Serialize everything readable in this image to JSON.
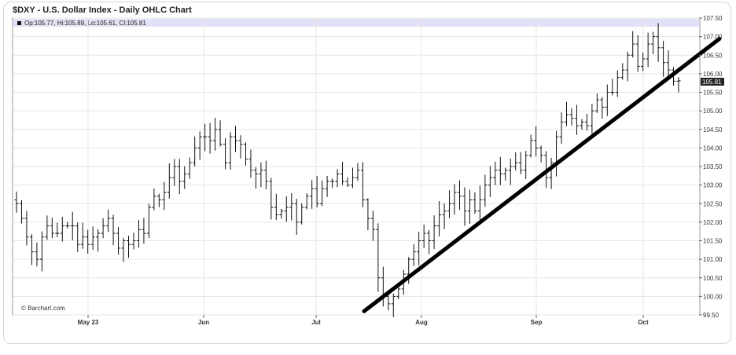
{
  "chart_data": {
    "type": "ohlc",
    "title": "$DXY - U.S. Dollar Index - Daily OHLC Chart",
    "legend": "Op:105.77, Hi:105.89, Lo:105.61, Cl:105.81",
    "credit": "© Barchart.com",
    "last_price_label": "105.81",
    "ylim": [
      99.5,
      107.5
    ],
    "y_ticks": [
      "107.50",
      "107.00",
      "106.50",
      "106.00",
      "105.50",
      "105.00",
      "104.50",
      "104.00",
      "103.50",
      "103.00",
      "102.50",
      "102.00",
      "101.50",
      "101.00",
      "100.50",
      "100.00",
      "99.50"
    ],
    "x_ticks": [
      "May 23",
      "Jun",
      "Jul",
      "Aug",
      "Sep",
      "Oct"
    ],
    "closes": [
      102.5,
      102.1,
      101.6,
      101.2,
      101.0,
      101.6,
      101.9,
      101.7,
      101.7,
      101.9,
      101.9,
      101.9,
      101.4,
      101.6,
      101.4,
      101.6,
      101.7,
      101.9,
      102.1,
      101.7,
      101.3,
      101.5,
      101.4,
      101.5,
      101.8,
      101.7,
      102.4,
      102.7,
      102.6,
      102.8,
      103.2,
      103.5,
      103.1,
      103.3,
      103.6,
      104.0,
      104.3,
      104.3,
      104.2,
      104.5,
      104.1,
      103.6,
      104.3,
      104.2,
      104.1,
      103.7,
      103.4,
      103.3,
      103.4,
      103.1,
      102.4,
      102.2,
      102.3,
      102.4,
      102.5,
      102.0,
      102.4,
      102.7,
      102.9,
      102.5,
      102.9,
      103.1,
      103.1,
      103.3,
      103.1,
      103.0,
      103.2,
      103.4,
      102.6,
      102.1,
      101.8,
      100.5,
      100.0,
      99.8,
      100.0,
      100.2,
      100.6,
      101.0,
      101.2,
      101.5,
      101.7,
      101.5,
      101.9,
      102.2,
      102.3,
      102.5,
      102.8,
      102.7,
      102.3,
      102.6,
      102.3,
      102.6,
      103.0,
      103.2,
      103.4,
      103.3,
      103.4,
      103.5,
      103.6,
      103.4,
      103.8,
      104.2,
      104.0,
      103.8,
      103.2,
      103.6,
      104.3,
      104.7,
      104.9,
      104.8,
      104.6,
      104.7,
      104.6,
      105.0,
      105.3,
      105.1,
      105.5,
      105.5,
      105.9,
      106.1,
      106.5,
      106.8,
      106.2,
      106.4,
      106.8,
      107.0,
      106.7,
      106.3,
      106.1,
      105.8,
      105.81
    ],
    "trendline": {
      "from": {
        "x": "Jul",
        "y": 99.6
      },
      "to": {
        "x": "Oct",
        "y": 106.9
      }
    }
  }
}
